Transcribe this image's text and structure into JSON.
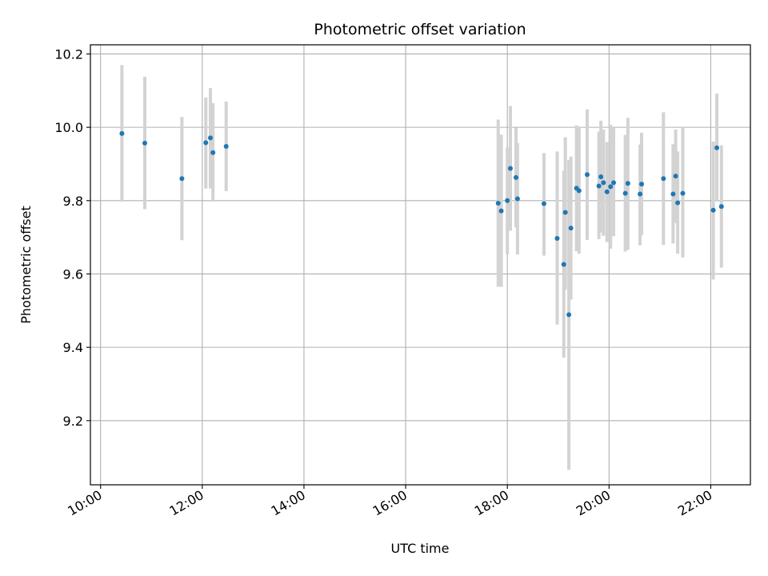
{
  "chart_data": {
    "type": "scatter",
    "title": "Photometric offset variation",
    "xlabel": "UTC time",
    "ylabel": "Photometric offset",
    "x_tick_labels": [
      "10:00",
      "12:00",
      "14:00",
      "16:00",
      "18:00",
      "20:00",
      "22:00"
    ],
    "x_tick_values_hours": [
      10,
      12,
      14,
      16,
      18,
      20,
      22
    ],
    "y_tick_labels": [
      "9.2",
      "9.4",
      "9.6",
      "9.8",
      "10.0",
      "10.2"
    ],
    "y_tick_values": [
      9.2,
      9.4,
      9.6,
      9.8,
      10.0,
      10.2
    ],
    "xlim_hours": [
      9.8,
      22.78
    ],
    "ylim": [
      9.025,
      10.225
    ],
    "grid": true,
    "marker_color": "#1f77b4",
    "errorbar_color": "#d3d3d3",
    "points": [
      {
        "t": 10.42,
        "y": 9.983,
        "lo": 9.797,
        "hi": 10.17
      },
      {
        "t": 10.87,
        "y": 9.957,
        "lo": 9.777,
        "hi": 10.138
      },
      {
        "t": 11.6,
        "y": 9.86,
        "lo": 9.692,
        "hi": 10.028
      },
      {
        "t": 12.07,
        "y": 9.958,
        "lo": 9.833,
        "hi": 10.081
      },
      {
        "t": 12.16,
        "y": 9.971,
        "lo": 9.833,
        "hi": 10.107
      },
      {
        "t": 12.21,
        "y": 9.931,
        "lo": 9.797,
        "hi": 10.066
      },
      {
        "t": 12.47,
        "y": 9.948,
        "lo": 9.826,
        "hi": 10.07
      },
      {
        "t": 17.82,
        "y": 9.793,
        "lo": 9.565,
        "hi": 10.021
      },
      {
        "t": 17.88,
        "y": 9.772,
        "lo": 9.565,
        "hi": 9.98
      },
      {
        "t": 18.0,
        "y": 9.8,
        "lo": 9.653,
        "hi": 9.945
      },
      {
        "t": 18.06,
        "y": 9.888,
        "lo": 9.718,
        "hi": 10.058
      },
      {
        "t": 18.17,
        "y": 9.863,
        "lo": 9.727,
        "hi": 9.999
      },
      {
        "t": 18.2,
        "y": 9.805,
        "lo": 9.653,
        "hi": 9.957
      },
      {
        "t": 18.72,
        "y": 9.792,
        "lo": 9.65,
        "hi": 9.93
      },
      {
        "t": 18.98,
        "y": 9.697,
        "lo": 9.462,
        "hi": 9.934
      },
      {
        "t": 19.11,
        "y": 9.626,
        "lo": 9.372,
        "hi": 9.881
      },
      {
        "t": 19.14,
        "y": 9.768,
        "lo": 9.558,
        "hi": 9.973
      },
      {
        "t": 19.21,
        "y": 9.489,
        "lo": 9.066,
        "hi": 9.911
      },
      {
        "t": 19.25,
        "y": 9.725,
        "lo": 9.53,
        "hi": 9.92
      },
      {
        "t": 19.36,
        "y": 9.834,
        "lo": 9.662,
        "hi": 10.005
      },
      {
        "t": 19.41,
        "y": 9.827,
        "lo": 9.655,
        "hi": 10.002
      },
      {
        "t": 19.57,
        "y": 9.871,
        "lo": 9.693,
        "hi": 10.049
      },
      {
        "t": 19.8,
        "y": 9.84,
        "lo": 9.695,
        "hi": 9.988
      },
      {
        "t": 19.84,
        "y": 9.865,
        "lo": 9.713,
        "hi": 10.018
      },
      {
        "t": 19.89,
        "y": 9.849,
        "lo": 9.704,
        "hi": 9.994
      },
      {
        "t": 19.96,
        "y": 9.824,
        "lo": 9.687,
        "hi": 9.96
      },
      {
        "t": 20.03,
        "y": 9.838,
        "lo": 9.669,
        "hi": 10.007
      },
      {
        "t": 20.09,
        "y": 9.849,
        "lo": 9.703,
        "hi": 9.998
      },
      {
        "t": 20.32,
        "y": 9.82,
        "lo": 9.661,
        "hi": 9.979
      },
      {
        "t": 20.37,
        "y": 9.847,
        "lo": 9.666,
        "hi": 10.026
      },
      {
        "t": 20.61,
        "y": 9.818,
        "lo": 9.678,
        "hi": 9.953
      },
      {
        "t": 20.64,
        "y": 9.845,
        "lo": 9.706,
        "hi": 9.985
      },
      {
        "t": 21.07,
        "y": 9.86,
        "lo": 9.679,
        "hi": 10.041
      },
      {
        "t": 21.26,
        "y": 9.818,
        "lo": 9.683,
        "hi": 9.954
      },
      {
        "t": 21.31,
        "y": 9.867,
        "lo": 9.739,
        "hi": 9.994
      },
      {
        "t": 21.35,
        "y": 9.794,
        "lo": 9.655,
        "hi": 9.934
      },
      {
        "t": 21.45,
        "y": 9.82,
        "lo": 9.645,
        "hi": 10.0
      },
      {
        "t": 22.05,
        "y": 9.774,
        "lo": 9.585,
        "hi": 9.961
      },
      {
        "t": 22.12,
        "y": 9.944,
        "lo": 9.797,
        "hi": 10.092
      },
      {
        "t": 22.21,
        "y": 9.784,
        "lo": 9.617,
        "hi": 9.951
      }
    ]
  }
}
